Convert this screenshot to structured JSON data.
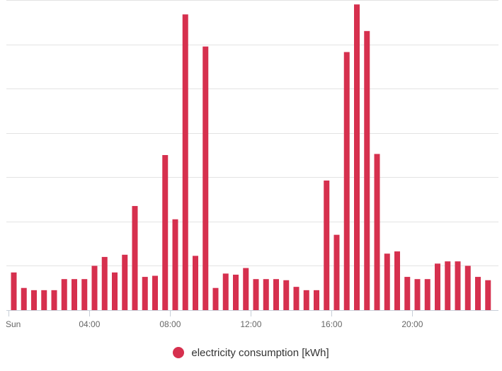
{
  "chart_data": {
    "type": "bar",
    "title": "",
    "xlabel": "",
    "ylabel": "",
    "ylim": [
      0,
      14
    ],
    "y_ticks": [
      2,
      4,
      6,
      8,
      10,
      12,
      14
    ],
    "y_tick_labels_visible": false,
    "grid": "horizontal",
    "legend_position": "bottom-center",
    "x_tick_labels": [
      "Sun",
      "04:00",
      "08:00",
      "12:00",
      "16:00",
      "20:00"
    ],
    "x_tick_hours": [
      0,
      4,
      8,
      12,
      16,
      20
    ],
    "x_hour_step": 0.5,
    "series": [
      {
        "name": "electricity consumption [kWh]",
        "color": "#d6304e",
        "values": [
          1.7,
          1.0,
          0.9,
          0.9,
          0.9,
          1.4,
          1.4,
          1.4,
          2.0,
          2.4,
          1.7,
          2.5,
          4.7,
          1.5,
          1.55,
          7.0,
          4.1,
          13.35,
          2.45,
          11.9,
          1.0,
          1.65,
          1.6,
          1.9,
          1.4,
          1.4,
          1.4,
          1.35,
          1.05,
          0.9,
          0.9,
          5.85,
          3.4,
          11.65,
          13.8,
          12.6,
          7.05,
          2.55,
          2.65,
          1.5,
          1.4,
          1.4,
          2.1,
          2.2,
          2.2,
          2.0,
          1.5,
          1.35
        ]
      }
    ]
  }
}
